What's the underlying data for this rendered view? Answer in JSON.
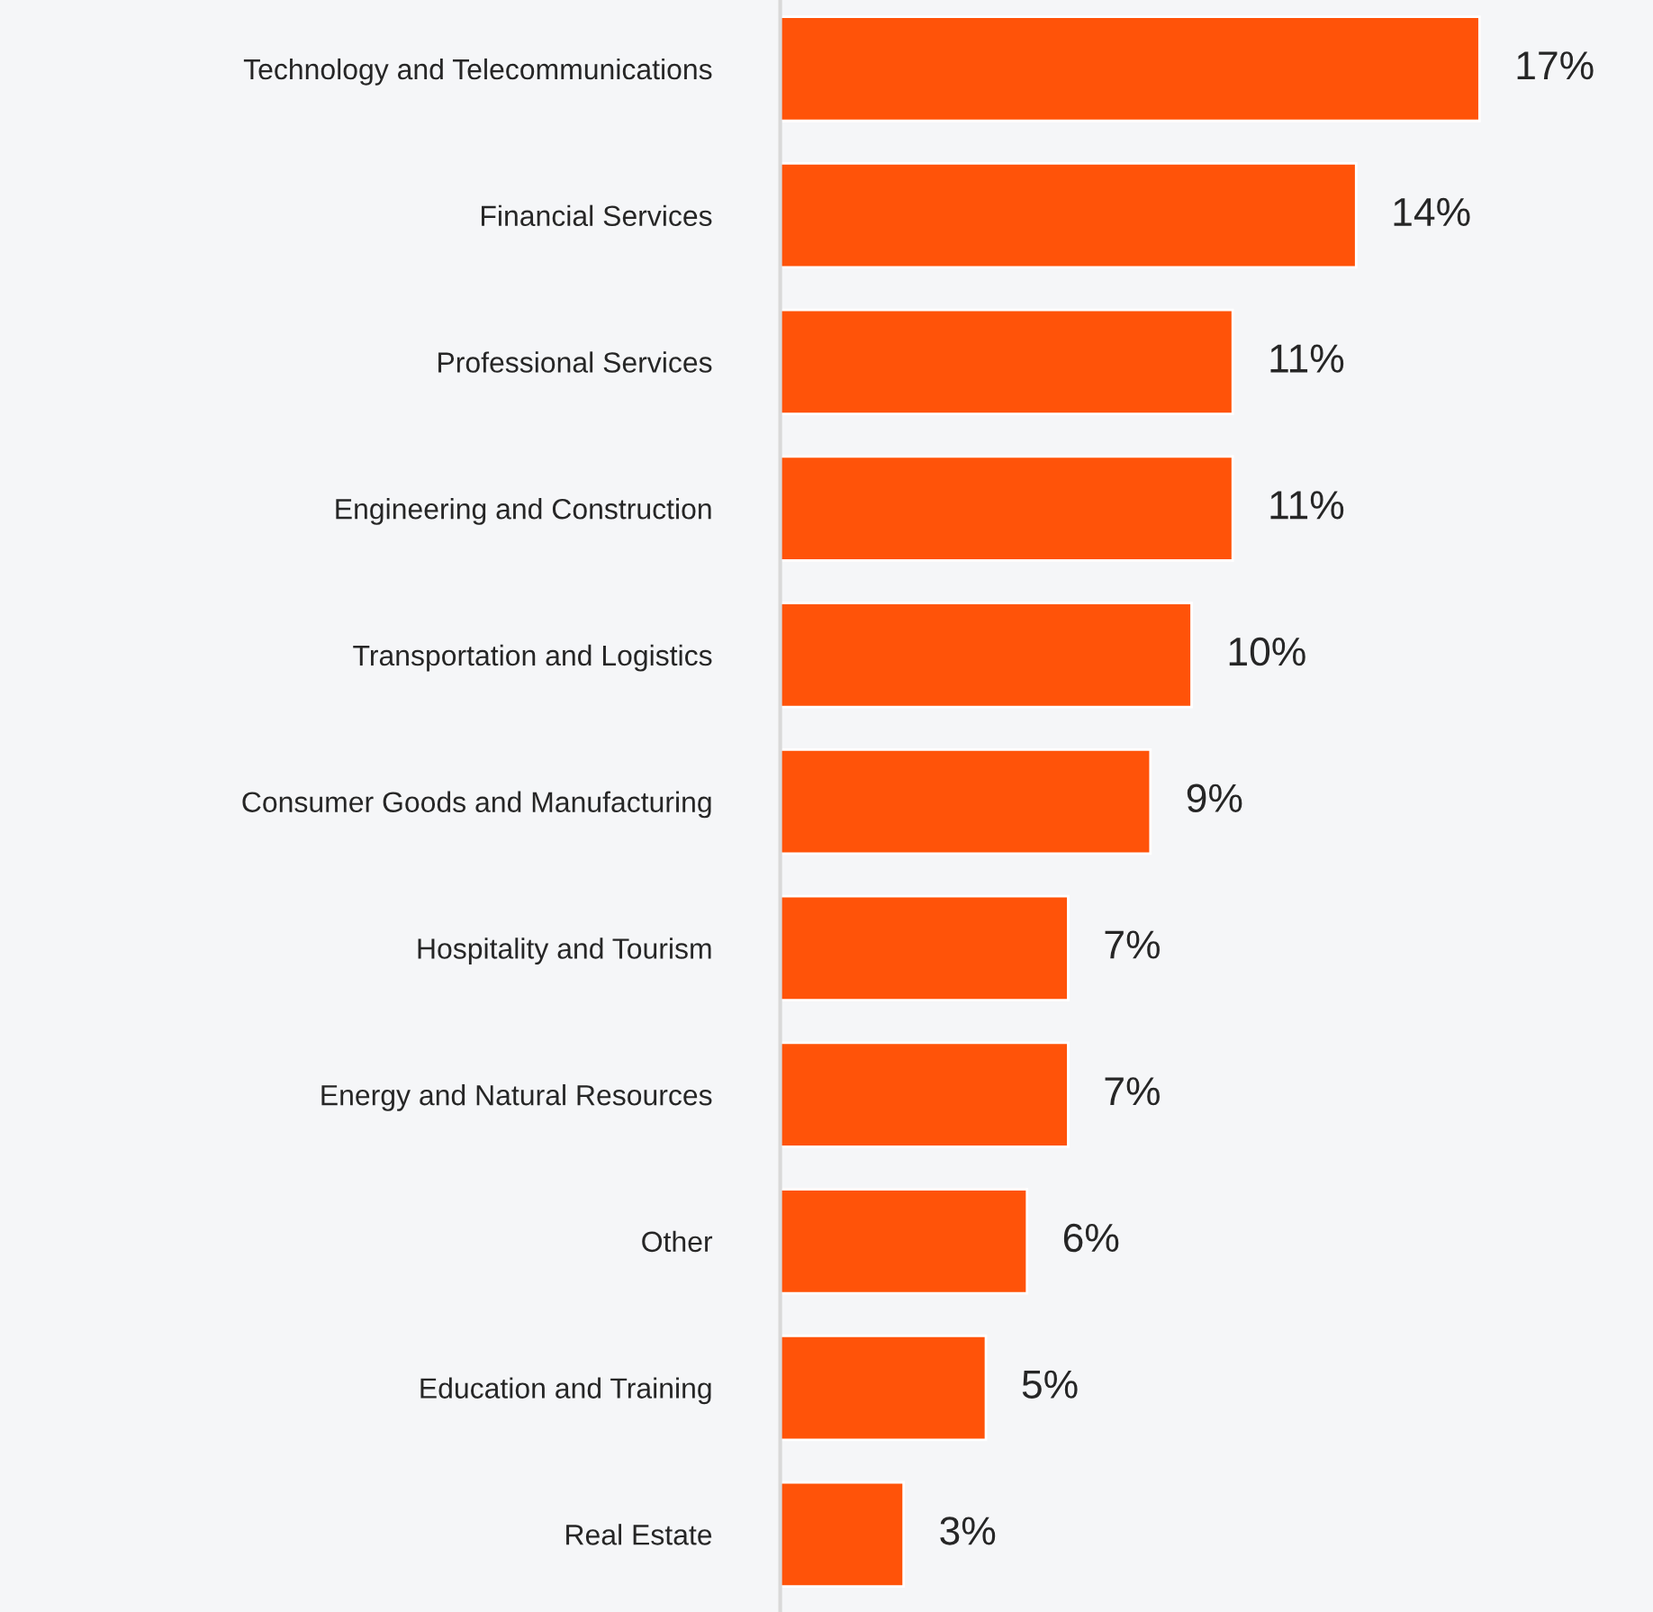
{
  "chart_data": {
    "type": "bar",
    "orientation": "horizontal",
    "categories": [
      "Technology and Telecommunications",
      "Financial Services",
      "Professional Services",
      "Engineering and Construction",
      "Transportation and Logistics",
      "Consumer Goods and Manufacturing",
      "Hospitality and Tourism",
      "Energy and Natural Resources",
      "Other",
      "Education and Training",
      "Real Estate"
    ],
    "values": [
      17,
      14,
      11,
      11,
      10,
      9,
      7,
      7,
      6,
      5,
      3
    ],
    "value_labels": [
      "17%",
      "14%",
      "11%",
      "11%",
      "10%",
      "9%",
      "7%",
      "7%",
      "6%",
      "5%",
      "3%"
    ],
    "color": "#ff5309",
    "grid": false,
    "legend": false
  }
}
